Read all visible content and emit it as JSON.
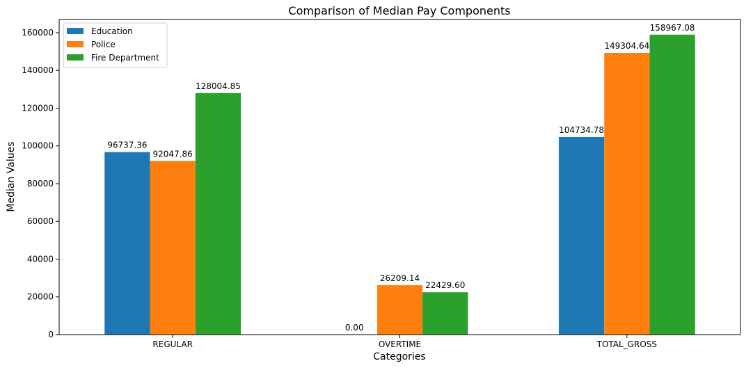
{
  "chart_data": {
    "type": "bar",
    "title": "Comparison of Median Pay Components",
    "xlabel": "Categories",
    "ylabel": "Median Values",
    "categories": [
      "REGULAR",
      "OVERTIME",
      "TOTAL_GROSS"
    ],
    "series": [
      {
        "name": "Education",
        "color": "#1f77b4",
        "values": [
          96737.36,
          0,
          104734.78
        ],
        "labels": [
          "96737.36",
          "0.00",
          "104734.78"
        ]
      },
      {
        "name": "Police",
        "color": "#ff7f0e",
        "values": [
          92047.86,
          26209.14,
          149304.64
        ],
        "labels": [
          "92047.86",
          "26209.14",
          "149304.64"
        ]
      },
      {
        "name": "Fire Department",
        "color": "#2ca02c",
        "values": [
          128004.85,
          22429.6,
          158967.08
        ],
        "labels": [
          "128004.85",
          "22429.60",
          "158967.08"
        ]
      }
    ],
    "ylim": [
      0,
      167000
    ],
    "yticks": [
      0,
      20000,
      40000,
      60000,
      80000,
      100000,
      120000,
      140000,
      160000
    ],
    "ytick_labels": [
      "0",
      "20000",
      "40000",
      "60000",
      "80000",
      "100000",
      "120000",
      "140000",
      "160000"
    ],
    "grid": false,
    "legend_position": "top-left"
  }
}
